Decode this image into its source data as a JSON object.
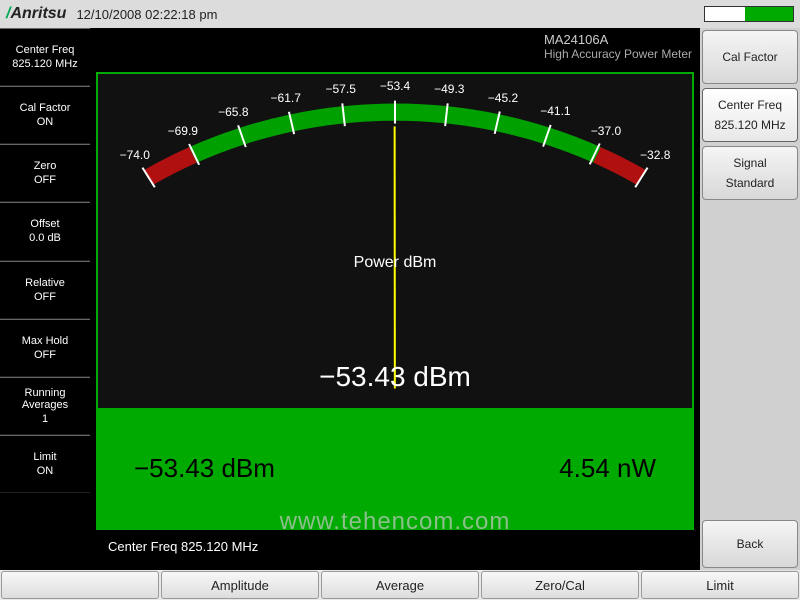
{
  "header": {
    "brand": "Anritsu",
    "datetime": "12/10/2008 02:22:18 pm",
    "battery_pct": 55
  },
  "model": {
    "id": "MA24106A",
    "desc": "High Accuracy Power Meter"
  },
  "left": [
    {
      "label": "Center Freq",
      "value": "825.120 MHz"
    },
    {
      "label": "Cal Factor",
      "value": "ON"
    },
    {
      "label": "Zero",
      "value": "OFF"
    },
    {
      "label": "Offset",
      "value": "0.0 dB"
    },
    {
      "label": "Relative",
      "value": "OFF"
    },
    {
      "label": "Max Hold",
      "value": "OFF"
    },
    {
      "label": "Running Averages",
      "value": "1"
    },
    {
      "label": "Limit",
      "value": "ON"
    }
  ],
  "right": {
    "items": [
      {
        "label": "Cal Factor",
        "sub": ""
      },
      {
        "label": "Center Freq",
        "sub": "825.120 MHz"
      },
      {
        "label": "Signal",
        "sub": "Standard"
      }
    ],
    "back": "Back"
  },
  "gauge": {
    "unit_label": "Power dBm",
    "min": -74.0,
    "max": -32.8,
    "ticks": [
      -74.0,
      -69.9,
      -65.8,
      -61.7,
      -57.5,
      -53.4,
      -49.3,
      -45.2,
      -41.1,
      -37.0,
      -32.8
    ],
    "limit_low": -70.0,
    "limit_high": -36.8,
    "needle_value": -53.43,
    "arc_color_ok": "#00a000",
    "arc_color_bad": "#b01010",
    "tick_color": "#ffffff",
    "needle_color": "#ffff00"
  },
  "readout": {
    "primary": "−53.43 dBm",
    "dbm": "−53.43 dBm",
    "watt": "4.54 nW"
  },
  "watermark": "www.tehencom.com",
  "footer_freq": "Center Freq 825.120 MHz",
  "bottom": [
    "",
    "Amplitude",
    "Average",
    "Zero/Cal",
    "Limit"
  ],
  "colors": {
    "frame_border": "#00a000",
    "green_bar": "#00a000",
    "bg": "#000000"
  }
}
